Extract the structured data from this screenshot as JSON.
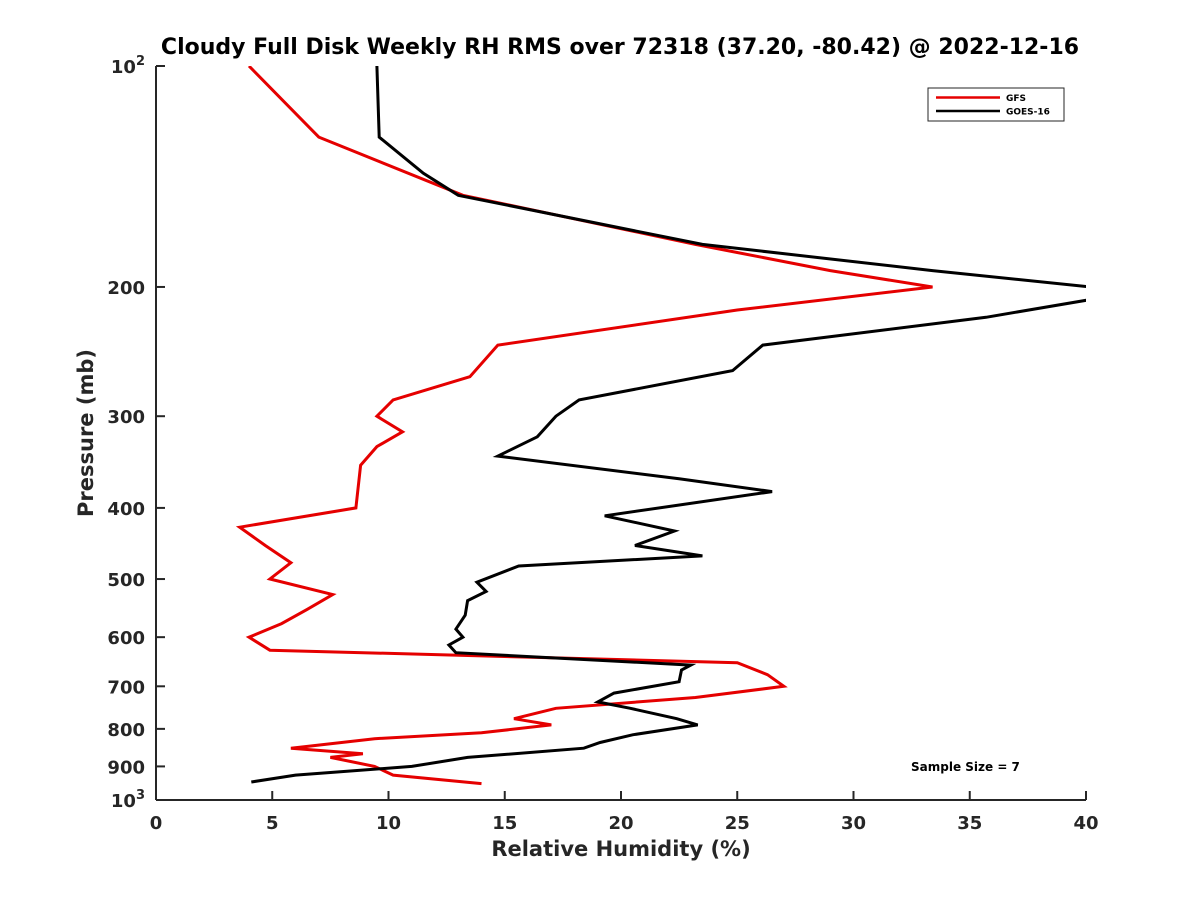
{
  "chart_data": {
    "type": "line",
    "title": "Cloudy Full Disk Weekly RH RMS over 72318 (37.20, -80.42) @ 2022-12-16",
    "xlabel": "Relative Humidity (%)",
    "ylabel": "Pressure (mb)",
    "xlim": [
      0,
      40
    ],
    "ylim": [
      100,
      1000
    ],
    "yscale": "log",
    "y_reversed": true,
    "x_ticks": [
      0,
      5,
      10,
      15,
      20,
      25,
      30,
      35,
      40
    ],
    "x_tick_labels": [
      "0",
      "5",
      "10",
      "15",
      "20",
      "25",
      "30",
      "35",
      "40"
    ],
    "y_ticks": [
      200,
      300,
      400,
      500,
      600,
      700,
      800,
      900
    ],
    "y_tick_labels": [
      "200",
      "300",
      "400",
      "500",
      "600",
      "700",
      "800",
      "900"
    ],
    "y_edge_labels": [
      {
        "value": 100,
        "base": "10",
        "exp": "2"
      },
      {
        "value": 1000,
        "base": "10",
        "exp": "3"
      }
    ],
    "grid": false,
    "legend_position": "top-right",
    "annotation": "Sample Size = 7",
    "series": [
      {
        "name": "GFS",
        "color": "#e50000",
        "points": [
          [
            4.0,
            100
          ],
          [
            7.0,
            125
          ],
          [
            13.2,
            150
          ],
          [
            23.2,
            175
          ],
          [
            29.0,
            190
          ],
          [
            33.4,
            200
          ],
          [
            25.0,
            215
          ],
          [
            14.7,
            240
          ],
          [
            13.5,
            265
          ],
          [
            10.2,
            285
          ],
          [
            9.5,
            300
          ],
          [
            10.6,
            315
          ],
          [
            9.5,
            330
          ],
          [
            8.8,
            350
          ],
          [
            8.6,
            400
          ],
          [
            3.6,
            425
          ],
          [
            4.7,
            450
          ],
          [
            5.8,
            475
          ],
          [
            4.9,
            500
          ],
          [
            7.6,
            525
          ],
          [
            6.5,
            550
          ],
          [
            5.4,
            575
          ],
          [
            4.0,
            600
          ],
          [
            4.9,
            625
          ],
          [
            25.0,
            650
          ],
          [
            26.3,
            675
          ],
          [
            27.0,
            700
          ],
          [
            23.2,
            725
          ],
          [
            17.2,
            750
          ],
          [
            15.4,
            775
          ],
          [
            17.0,
            790
          ],
          [
            14.0,
            810
          ],
          [
            9.4,
            825
          ],
          [
            5.8,
            850
          ],
          [
            8.9,
            865
          ],
          [
            7.5,
            875
          ],
          [
            9.4,
            900
          ],
          [
            10.2,
            925
          ],
          [
            14.0,
            950
          ]
        ]
      },
      {
        "name": "GOES-16",
        "color": "#000000",
        "points": [
          [
            9.5,
            100
          ],
          [
            9.6,
            125
          ],
          [
            11.5,
            140
          ],
          [
            13.0,
            150
          ],
          [
            23.5,
            175
          ],
          [
            33.4,
            190
          ],
          [
            40.2,
            200
          ],
          [
            40.2,
            208
          ],
          [
            35.7,
            220
          ],
          [
            26.1,
            240
          ],
          [
            24.8,
            260
          ],
          [
            18.2,
            285
          ],
          [
            17.2,
            300
          ],
          [
            16.4,
            320
          ],
          [
            14.7,
            340
          ],
          [
            22.5,
            365
          ],
          [
            26.5,
            380
          ],
          [
            19.3,
            410
          ],
          [
            22.3,
            430
          ],
          [
            20.6,
            450
          ],
          [
            23.5,
            465
          ],
          [
            15.6,
            480
          ],
          [
            13.8,
            505
          ],
          [
            14.2,
            520
          ],
          [
            13.4,
            535
          ],
          [
            13.3,
            560
          ],
          [
            12.9,
            585
          ],
          [
            13.2,
            600
          ],
          [
            12.6,
            615
          ],
          [
            12.9,
            630
          ],
          [
            23.0,
            655
          ],
          [
            22.6,
            665
          ],
          [
            22.5,
            690
          ],
          [
            19.7,
            715
          ],
          [
            19.0,
            735
          ],
          [
            20.4,
            750
          ],
          [
            22.4,
            775
          ],
          [
            23.3,
            790
          ],
          [
            20.5,
            815
          ],
          [
            19.1,
            835
          ],
          [
            18.4,
            850
          ],
          [
            13.4,
            875
          ],
          [
            11.0,
            900
          ],
          [
            6.0,
            925
          ],
          [
            4.1,
            945
          ]
        ]
      }
    ]
  }
}
